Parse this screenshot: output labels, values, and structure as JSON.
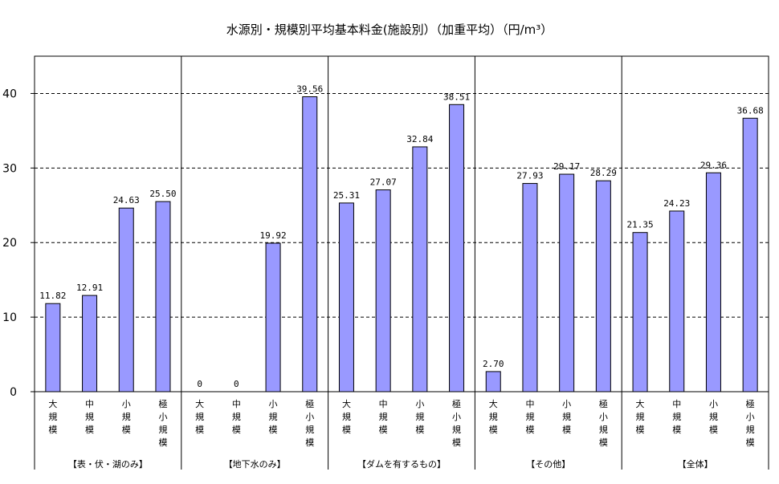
{
  "chart_data": {
    "type": "bar",
    "title": "水源別・規模別平均基本料金(施設別）（加重平均）（円/m³）",
    "ylim": [
      0,
      45
    ],
    "yticks": [
      0,
      10,
      20,
      30,
      40
    ],
    "grid": true,
    "bar_color": "#9999ff",
    "groups": [
      {
        "name": "【表・伏・湖のみ】",
        "categories": [
          "大規模",
          "中規模",
          "小規模",
          "極小規模"
        ],
        "values": [
          11.82,
          12.91,
          24.63,
          25.5
        ],
        "labels": [
          "11.82",
          "12.91",
          "24.63",
          "25.50"
        ]
      },
      {
        "name": "【地下水のみ】",
        "categories": [
          "大規模",
          "中規模",
          "小規模",
          "極小規模"
        ],
        "values": [
          0,
          0,
          19.92,
          39.56
        ],
        "labels": [
          "0",
          "0",
          "19.92",
          "39.56"
        ]
      },
      {
        "name": "【ダムを有するもの】",
        "categories": [
          "大規模",
          "中規模",
          "小規模",
          "極小規模"
        ],
        "values": [
          25.31,
          27.07,
          32.84,
          38.51
        ],
        "labels": [
          "25.31",
          "27.07",
          "32.84",
          "38.51"
        ]
      },
      {
        "name": "【その他】",
        "categories": [
          "大規模",
          "中規模",
          "小規模",
          "極小規模"
        ],
        "values": [
          2.7,
          27.93,
          29.17,
          28.29
        ],
        "labels": [
          "2.70",
          "27.93",
          "29.17",
          "28.29"
        ]
      },
      {
        "name": "【全体】",
        "categories": [
          "大規模",
          "中規模",
          "小規模",
          "極小規模"
        ],
        "values": [
          21.35,
          24.23,
          29.36,
          36.68
        ],
        "labels": [
          "21.35",
          "24.23",
          "29.36",
          "36.68"
        ]
      }
    ]
  }
}
